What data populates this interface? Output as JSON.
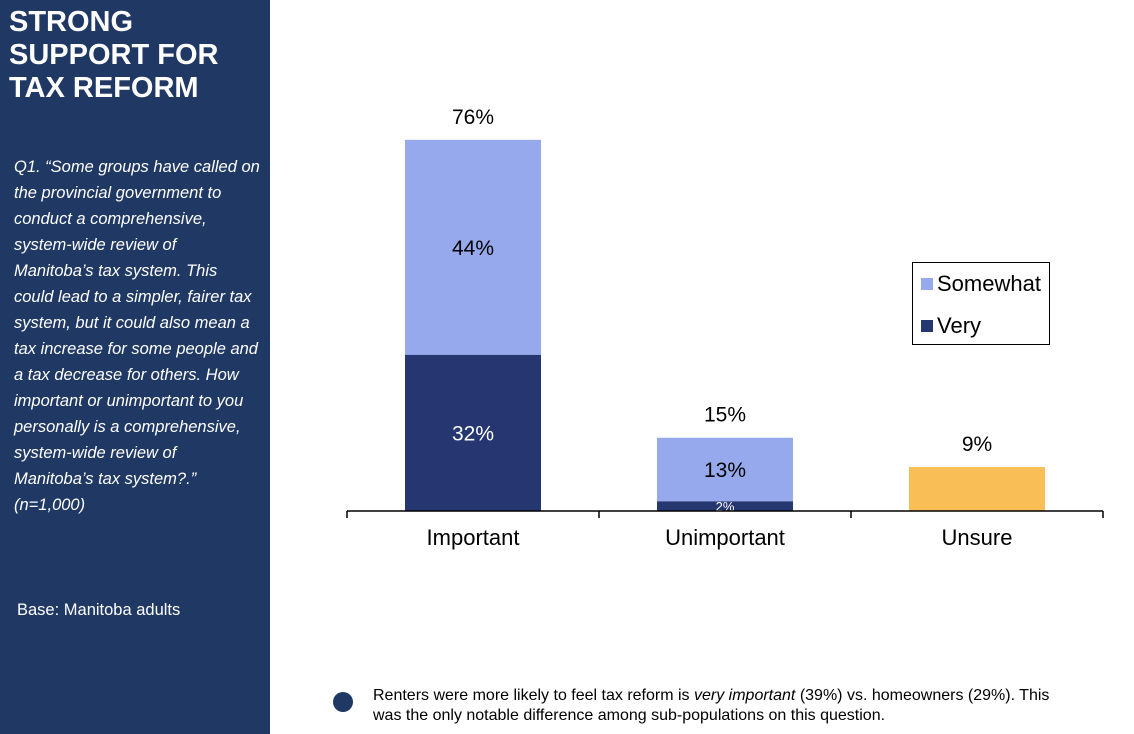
{
  "sidebar": {
    "title": "STRONG SUPPORT FOR TAX REFORM",
    "question": "Q1. “Some groups have called on the provincial government to conduct a comprehensive, system-wide review of Manitoba’s tax system. This could lead to a simpler, fairer tax system, but it could also mean a tax increase for some people and a tax decrease for others. How important or unimportant to you personally is a comprehensive, system-wide review of Manitoba’s tax system?.”  (n=1,000)",
    "base": "Base: Manitoba adults"
  },
  "note": {
    "before": "Renters were more likely to feel tax reform is ",
    "emphasis": "very important",
    "after": " (39%) vs. homeowners (29%). This was the only notable difference among sub-populations on this question."
  },
  "colors": {
    "sidebar": "#1f3864",
    "very": "#253670",
    "somewhat": "#95a9ec",
    "unsure": "#f9bf56"
  },
  "chart_data": {
    "type": "bar",
    "stacked": true,
    "categories": [
      "Important",
      "Unimportant",
      "Unsure"
    ],
    "series": [
      {
        "name": "Very",
        "values": [
          32,
          2,
          null
        ],
        "labels": [
          "32%",
          "2%",
          ""
        ]
      },
      {
        "name": "Somewhat",
        "values": [
          44,
          13,
          null
        ],
        "labels": [
          "44%",
          "13%",
          ""
        ]
      },
      {
        "name": "",
        "values": [
          null,
          null,
          9
        ],
        "labels": [
          "",
          "",
          ""
        ]
      }
    ],
    "totals": [
      "76%",
      "15%",
      "9%"
    ],
    "legend": {
      "position": "right",
      "entries": [
        "Somewhat",
        "Very"
      ]
    },
    "ylim": [
      0,
      86
    ],
    "grid": false
  }
}
